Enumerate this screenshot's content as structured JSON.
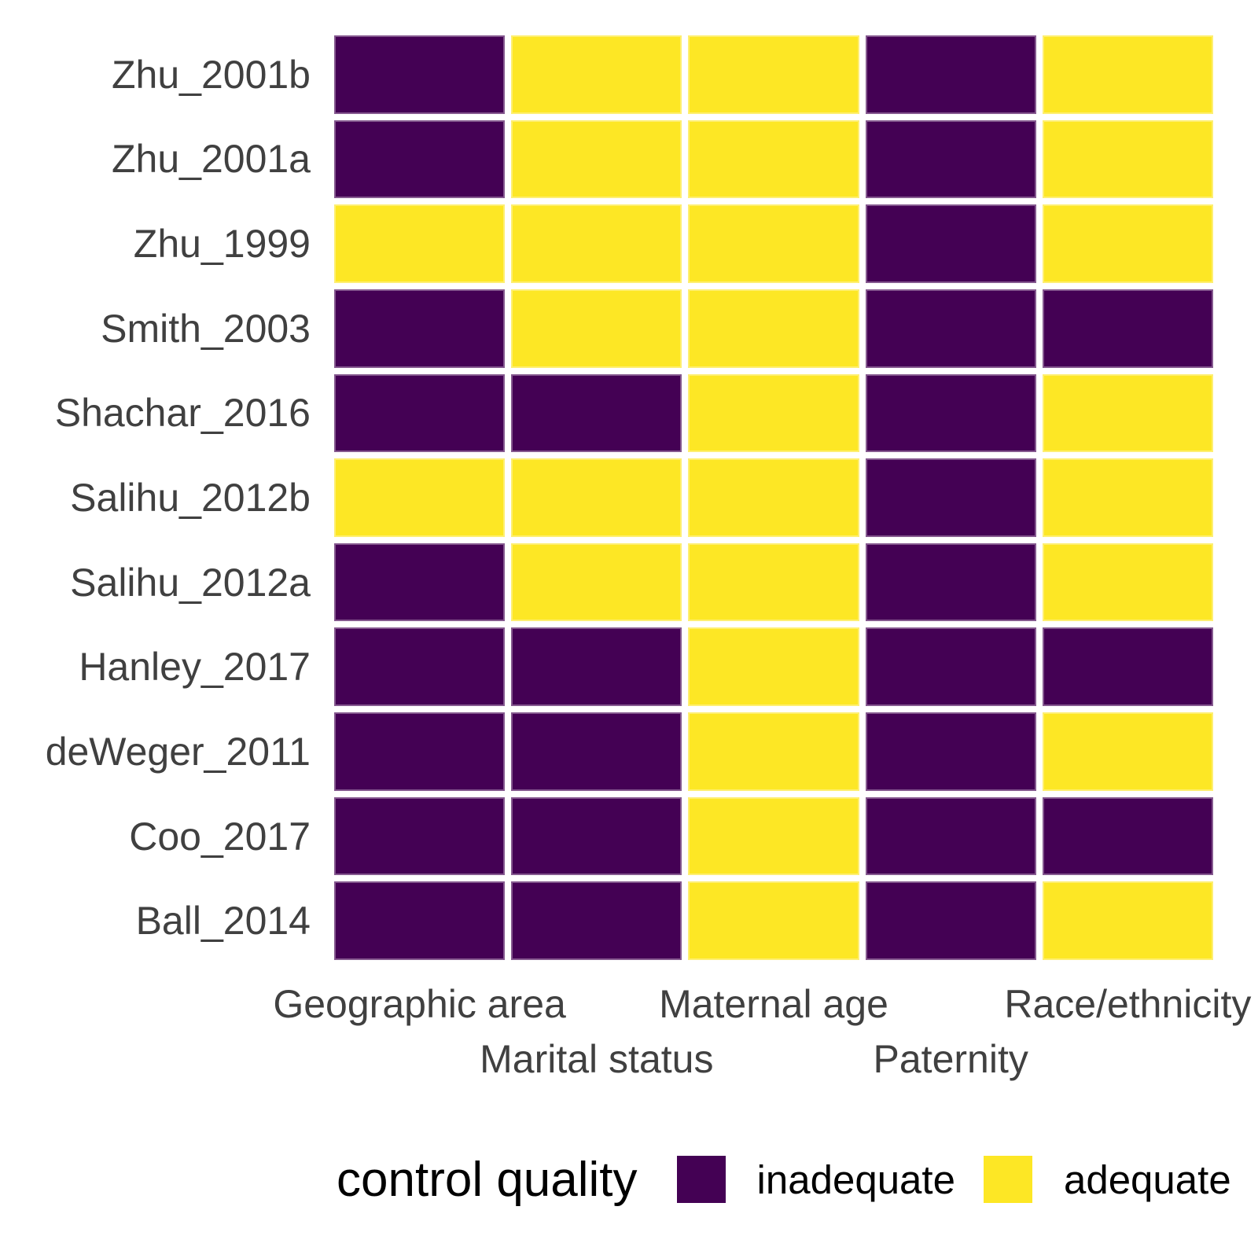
{
  "chart_data": {
    "type": "heatmap",
    "title": "",
    "x_categories": [
      "Geographic area",
      "Marital status",
      "Maternal age",
      "Paternity",
      "Race/ethnicity"
    ],
    "x_labels_staggered": true,
    "y_categories_top_to_bottom": [
      "Zhu_2001b",
      "Zhu_2001a",
      "Zhu_1999",
      "Smith_2003",
      "Shachar_2016",
      "Salihu_2012b",
      "Salihu_2012a",
      "Hanley_2017",
      "deWeger_2011",
      "Coo_2017",
      "Ball_2014"
    ],
    "values": [
      [
        "inadequate",
        "adequate",
        "adequate",
        "inadequate",
        "adequate"
      ],
      [
        "inadequate",
        "adequate",
        "adequate",
        "inadequate",
        "adequate"
      ],
      [
        "adequate",
        "adequate",
        "adequate",
        "inadequate",
        "adequate"
      ],
      [
        "inadequate",
        "adequate",
        "adequate",
        "inadequate",
        "inadequate"
      ],
      [
        "inadequate",
        "inadequate",
        "adequate",
        "inadequate",
        "adequate"
      ],
      [
        "adequate",
        "adequate",
        "adequate",
        "inadequate",
        "adequate"
      ],
      [
        "inadequate",
        "adequate",
        "adequate",
        "inadequate",
        "adequate"
      ],
      [
        "inadequate",
        "inadequate",
        "adequate",
        "inadequate",
        "inadequate"
      ],
      [
        "inadequate",
        "inadequate",
        "adequate",
        "inadequate",
        "adequate"
      ],
      [
        "inadequate",
        "inadequate",
        "adequate",
        "inadequate",
        "inadequate"
      ],
      [
        "inadequate",
        "inadequate",
        "adequate",
        "inadequate",
        "adequate"
      ]
    ],
    "colors": {
      "inadequate": "#440154",
      "adequate": "#FDE725"
    },
    "axis_text_color": "#404040",
    "grid": false,
    "legend": {
      "title": "control quality",
      "position": "bottom",
      "entries": [
        {
          "label": "inadequate",
          "color": "#440154"
        },
        {
          "label": "adequate",
          "color": "#FDE725"
        }
      ]
    }
  }
}
